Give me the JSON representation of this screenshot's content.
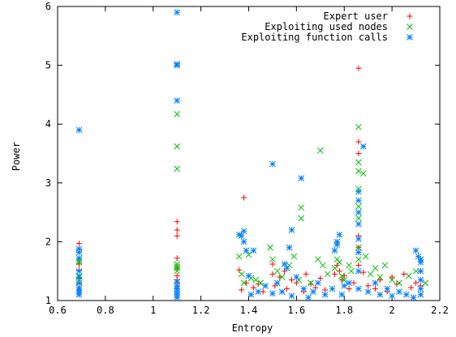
{
  "chart_data": {
    "type": "scatter",
    "xlabel": "Entropy",
    "ylabel": "Power",
    "xlim": [
      0.6,
      2.2
    ],
    "ylim": [
      1,
      6
    ],
    "x_ticks": [
      "0.6",
      "0.8",
      "1",
      "1.2",
      "1.4",
      "1.6",
      "1.8",
      "2",
      "2.2"
    ],
    "y_ticks": [
      "1",
      "2",
      "3",
      "4",
      "5",
      "6"
    ],
    "legend_position": "top-right",
    "grid": false,
    "series": [
      {
        "name": "Expert user",
        "marker": "plus",
        "color": "#ff0000",
        "points": [
          [
            0.69,
            1.97
          ],
          [
            0.69,
            1.88
          ],
          [
            0.69,
            1.62
          ],
          [
            0.69,
            1.52
          ],
          [
            0.69,
            1.38
          ],
          [
            0.69,
            1.28
          ],
          [
            0.69,
            1.18
          ],
          [
            1.1,
            2.34
          ],
          [
            1.1,
            2.2
          ],
          [
            1.1,
            2.1
          ],
          [
            1.1,
            1.72
          ],
          [
            1.1,
            1.55
          ],
          [
            1.1,
            1.42
          ],
          [
            1.1,
            1.35
          ],
          [
            1.1,
            1.3
          ],
          [
            1.1,
            1.25
          ],
          [
            1.36,
            1.52
          ],
          [
            1.37,
            1.18
          ],
          [
            1.38,
            2.75
          ],
          [
            1.39,
            1.3
          ],
          [
            1.42,
            1.22
          ],
          [
            1.44,
            1.28
          ],
          [
            1.46,
            1.15
          ],
          [
            1.5,
            1.62
          ],
          [
            1.5,
            1.45
          ],
          [
            1.51,
            1.25
          ],
          [
            1.53,
            1.4
          ],
          [
            1.55,
            1.5
          ],
          [
            1.56,
            1.2
          ],
          [
            1.58,
            1.35
          ],
          [
            1.6,
            1.3
          ],
          [
            1.63,
            1.15
          ],
          [
            1.64,
            1.45
          ],
          [
            1.66,
            1.28
          ],
          [
            1.68,
            1.22
          ],
          [
            1.7,
            1.38
          ],
          [
            1.72,
            1.18
          ],
          [
            1.76,
            1.45
          ],
          [
            1.77,
            1.6
          ],
          [
            1.78,
            1.5
          ],
          [
            1.79,
            1.35
          ],
          [
            1.8,
            1.42
          ],
          [
            1.82,
            1.2
          ],
          [
            1.84,
            1.3
          ],
          [
            1.86,
            4.95
          ],
          [
            1.86,
            3.7
          ],
          [
            1.86,
            3.5
          ],
          [
            1.86,
            2.1
          ],
          [
            1.86,
            1.9
          ],
          [
            1.86,
            1.6
          ],
          [
            1.88,
            1.48
          ],
          [
            1.9,
            1.25
          ],
          [
            1.93,
            1.2
          ],
          [
            1.95,
            1.35
          ],
          [
            1.98,
            1.15
          ],
          [
            2.0,
            1.4
          ],
          [
            2.02,
            1.28
          ],
          [
            2.05,
            1.45
          ],
          [
            2.08,
            1.22
          ],
          [
            2.1,
            1.3
          ],
          [
            2.12,
            1.5
          ],
          [
            2.12,
            1.25
          ]
        ]
      },
      {
        "name": "Exploiting used nodes",
        "marker": "cross",
        "color": "#00c000",
        "points": [
          [
            0.69,
            1.68
          ],
          [
            0.69,
            1.65
          ],
          [
            0.69,
            1.42
          ],
          [
            0.69,
            1.35
          ],
          [
            1.1,
            4.17
          ],
          [
            1.1,
            3.62
          ],
          [
            1.1,
            3.24
          ],
          [
            1.1,
            1.62
          ],
          [
            1.1,
            1.58
          ],
          [
            1.1,
            1.55
          ],
          [
            1.1,
            1.5
          ],
          [
            1.36,
            1.75
          ],
          [
            1.37,
            1.45
          ],
          [
            1.38,
            1.3
          ],
          [
            1.4,
            1.78
          ],
          [
            1.41,
            1.38
          ],
          [
            1.43,
            1.35
          ],
          [
            1.45,
            1.3
          ],
          [
            1.49,
            1.9
          ],
          [
            1.5,
            1.7
          ],
          [
            1.52,
            1.5
          ],
          [
            1.54,
            1.4
          ],
          [
            1.57,
            1.6
          ],
          [
            1.59,
            1.75
          ],
          [
            1.61,
            1.35
          ],
          [
            1.62,
            2.58
          ],
          [
            1.62,
            2.4
          ],
          [
            1.66,
            1.3
          ],
          [
            1.69,
            1.7
          ],
          [
            1.7,
            3.55
          ],
          [
            1.71,
            1.6
          ],
          [
            1.73,
            1.45
          ],
          [
            1.76,
            1.55
          ],
          [
            1.77,
            1.7
          ],
          [
            1.78,
            1.65
          ],
          [
            1.79,
            1.42
          ],
          [
            1.8,
            1.35
          ],
          [
            1.82,
            1.6
          ],
          [
            1.83,
            1.5
          ],
          [
            1.86,
            3.95
          ],
          [
            1.86,
            3.35
          ],
          [
            1.86,
            3.2
          ],
          [
            1.86,
            2.9
          ],
          [
            1.86,
            2.6
          ],
          [
            1.86,
            2.4
          ],
          [
            1.86,
            1.9
          ],
          [
            1.86,
            1.7
          ],
          [
            1.88,
            3.16
          ],
          [
            1.89,
            1.75
          ],
          [
            1.91,
            1.45
          ],
          [
            1.93,
            1.55
          ],
          [
            1.95,
            1.4
          ],
          [
            1.97,
            1.6
          ],
          [
            2.0,
            1.35
          ],
          [
            2.03,
            1.3
          ],
          [
            2.07,
            1.42
          ],
          [
            2.1,
            1.5
          ],
          [
            2.12,
            1.7
          ],
          [
            2.14,
            1.3
          ]
        ]
      },
      {
        "name": "Exploiting function calls",
        "marker": "star",
        "color": "#0080ff",
        "points": [
          [
            0.69,
            3.9
          ],
          [
            0.69,
            1.88
          ],
          [
            0.69,
            1.82
          ],
          [
            0.69,
            1.72
          ],
          [
            0.69,
            1.5
          ],
          [
            0.69,
            1.4
          ],
          [
            0.69,
            1.3
          ],
          [
            0.69,
            1.22
          ],
          [
            0.69,
            1.18
          ],
          [
            0.69,
            1.14
          ],
          [
            0.69,
            1.1
          ],
          [
            1.1,
            5.9
          ],
          [
            1.1,
            5.02
          ],
          [
            1.1,
            5.0
          ],
          [
            1.1,
            4.4
          ],
          [
            1.1,
            1.32
          ],
          [
            1.1,
            1.25
          ],
          [
            1.1,
            1.2
          ],
          [
            1.1,
            1.15
          ],
          [
            1.1,
            1.1
          ],
          [
            1.1,
            1.05
          ],
          [
            1.36,
            2.12
          ],
          [
            1.37,
            2.1
          ],
          [
            1.38,
            2.18
          ],
          [
            1.38,
            2.0
          ],
          [
            1.39,
            1.85
          ],
          [
            1.4,
            1.42
          ],
          [
            1.41,
            1.1
          ],
          [
            1.42,
            1.85
          ],
          [
            1.44,
            1.15
          ],
          [
            1.47,
            1.25
          ],
          [
            1.5,
            3.32
          ],
          [
            1.5,
            1.12
          ],
          [
            1.52,
            1.3
          ],
          [
            1.54,
            1.15
          ],
          [
            1.55,
            1.62
          ],
          [
            1.56,
            1.55
          ],
          [
            1.57,
            1.9
          ],
          [
            1.58,
            1.08
          ],
          [
            1.58,
            2.2
          ],
          [
            1.6,
            1.4
          ],
          [
            1.62,
            3.08
          ],
          [
            1.63,
            1.2
          ],
          [
            1.65,
            1.05
          ],
          [
            1.67,
            1.15
          ],
          [
            1.69,
            1.3
          ],
          [
            1.72,
            1.1
          ],
          [
            1.75,
            1.2
          ],
          [
            1.76,
            1.85
          ],
          [
            1.77,
            2.0
          ],
          [
            1.77,
            1.95
          ],
          [
            1.78,
            2.12
          ],
          [
            1.79,
            1.1
          ],
          [
            1.8,
            1.25
          ],
          [
            1.82,
            1.3
          ],
          [
            1.86,
            2.85
          ],
          [
            1.86,
            2.7
          ],
          [
            1.86,
            2.5
          ],
          [
            1.86,
            2.3
          ],
          [
            1.86,
            2.05
          ],
          [
            1.86,
            1.82
          ],
          [
            1.86,
            1.5
          ],
          [
            1.86,
            1.2
          ],
          [
            1.88,
            3.62
          ],
          [
            1.9,
            1.15
          ],
          [
            1.93,
            1.3
          ],
          [
            1.95,
            1.1
          ],
          [
            1.98,
            1.2
          ],
          [
            2.0,
            1.08
          ],
          [
            2.03,
            1.15
          ],
          [
            2.06,
            1.1
          ],
          [
            2.09,
            1.05
          ],
          [
            2.1,
            1.85
          ],
          [
            2.11,
            1.75
          ],
          [
            2.12,
            1.7
          ],
          [
            2.12,
            1.65
          ],
          [
            2.12,
            1.5
          ],
          [
            2.12,
            1.35
          ],
          [
            2.12,
            1.2
          ],
          [
            2.12,
            1.1
          ]
        ]
      }
    ]
  }
}
